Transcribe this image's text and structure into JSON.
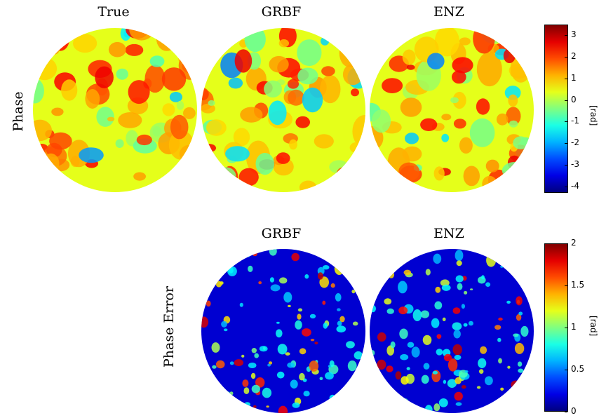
{
  "row1": {
    "label": "Phase",
    "titles": [
      "True",
      "GRBF",
      "ENZ"
    ],
    "colorbar": {
      "min": -4.3,
      "max": 3.5,
      "ticks": [
        "3",
        "2",
        "1",
        "0",
        "-1",
        "-2",
        "-3",
        "-4"
      ],
      "unit": "[rad]"
    }
  },
  "row2": {
    "label": "Phase Error",
    "titles": [
      "GRBF",
      "ENZ"
    ],
    "colorbar": {
      "min": 0,
      "max": 2,
      "ticks": [
        "2",
        "1.5",
        "1",
        "0.5",
        "0"
      ],
      "unit": "[rad]"
    }
  },
  "chart_data": [
    {
      "type": "heatmap",
      "title": "True",
      "row": "Phase",
      "zlim": [
        -4.3,
        3.5
      ],
      "zlabel": "[rad]",
      "colormap": "jet"
    },
    {
      "type": "heatmap",
      "title": "GRBF",
      "row": "Phase",
      "zlim": [
        -4.3,
        3.5
      ],
      "zlabel": "[rad]",
      "colormap": "jet"
    },
    {
      "type": "heatmap",
      "title": "ENZ",
      "row": "Phase",
      "zlim": [
        -4.3,
        3.5
      ],
      "zlabel": "[rad]",
      "colormap": "jet"
    },
    {
      "type": "heatmap",
      "title": "GRBF",
      "row": "Phase Error",
      "zlim": [
        0,
        2
      ],
      "zlabel": "[rad]",
      "colormap": "jet"
    },
    {
      "type": "heatmap",
      "title": "ENZ",
      "row": "Phase Error",
      "zlim": [
        0,
        2
      ],
      "zlabel": "[rad]",
      "colormap": "jet"
    }
  ]
}
